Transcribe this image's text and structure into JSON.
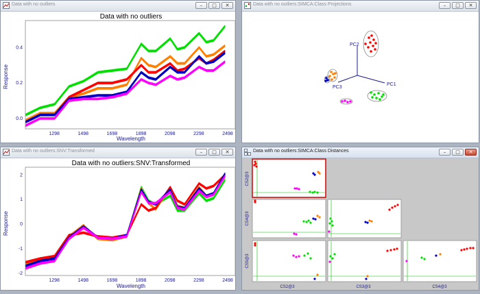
{
  "windows": {
    "raw": {
      "title": "Data with no outliers"
    },
    "proj": {
      "title": "Data with no outliers:SIMCA:Class Projections"
    },
    "snv": {
      "title": "Data with no outliers:SNV:Transformed"
    },
    "dist": {
      "title": "Data with no outliers:SIMCA:Class Distances"
    }
  },
  "window_buttons": {
    "minimize": "–",
    "maximize": "□",
    "close": "✕"
  },
  "colors": {
    "green": "#00e000",
    "orange": "#ff8000",
    "red": "#ff0000",
    "blue": "#0000c0",
    "magenta": "#ff00ff",
    "axis_label": "#1a1a8a",
    "frame": "#a0a0a0"
  },
  "projection": {
    "axes": [
      "PC1",
      "PC2",
      "PC3"
    ]
  },
  "distances": {
    "y_labels": [
      "CS2@3",
      "CS4@3",
      "CS5@3"
    ],
    "x_labels": [
      "CS2@3",
      "CS3@3",
      "CS4@3"
    ]
  },
  "chart_data": [
    {
      "type": "line",
      "title": "Data with no outliers",
      "xlabel": "Wavelength",
      "ylabel": "Response",
      "xlim": [
        1098,
        2550
      ],
      "ylim": [
        -0.06,
        0.55
      ],
      "xticks": [
        "1298",
        "1498",
        "1698",
        "1898",
        "2098",
        "2298",
        "2498"
      ],
      "yticks": [
        "0.0",
        "0.2",
        "0.4"
      ],
      "x": [
        1100,
        1200,
        1300,
        1400,
        1500,
        1600,
        1700,
        1800,
        1900,
        1950,
        2000,
        2100,
        2150,
        2200,
        2300,
        2350,
        2400,
        2480
      ],
      "series": [
        {
          "color": "green",
          "values": [
            0.02,
            0.06,
            0.08,
            0.18,
            0.21,
            0.26,
            0.27,
            0.28,
            0.42,
            0.38,
            0.38,
            0.45,
            0.39,
            0.4,
            0.48,
            0.43,
            0.44,
            0.52
          ]
        },
        {
          "color": "orange",
          "values": [
            -0.01,
            0.03,
            0.03,
            0.12,
            0.14,
            0.17,
            0.17,
            0.19,
            0.34,
            0.3,
            0.29,
            0.35,
            0.31,
            0.31,
            0.4,
            0.35,
            0.36,
            0.41
          ]
        },
        {
          "color": "red",
          "values": [
            -0.02,
            0.02,
            0.02,
            0.12,
            0.16,
            0.2,
            0.2,
            0.22,
            0.3,
            0.26,
            0.26,
            0.31,
            0.27,
            0.28,
            0.34,
            0.31,
            0.33,
            0.38
          ]
        },
        {
          "color": "blue",
          "values": [
            -0.02,
            0.02,
            0.02,
            0.11,
            0.12,
            0.13,
            0.13,
            0.15,
            0.26,
            0.23,
            0.22,
            0.29,
            0.26,
            0.26,
            0.35,
            0.31,
            0.32,
            0.37
          ]
        },
        {
          "color": "magenta",
          "values": [
            -0.04,
            0.0,
            0.0,
            0.1,
            0.11,
            0.11,
            0.12,
            0.14,
            0.22,
            0.2,
            0.19,
            0.24,
            0.22,
            0.23,
            0.29,
            0.27,
            0.27,
            0.32
          ]
        }
      ]
    },
    {
      "type": "line",
      "title": "Data with no outliers:SNV:Transformed",
      "xlabel": "Wavelength",
      "ylabel": "Response",
      "xlim": [
        1098,
        2550
      ],
      "ylim": [
        -2.1,
        2.3
      ],
      "xticks": [
        "1298",
        "1498",
        "1698",
        "1898",
        "2098",
        "2298",
        "2498"
      ],
      "yticks": [
        "-2",
        "-1",
        "0",
        "1",
        "2"
      ],
      "x": [
        1100,
        1200,
        1300,
        1400,
        1500,
        1600,
        1700,
        1800,
        1900,
        1950,
        2000,
        2100,
        2150,
        2200,
        2300,
        2350,
        2400,
        2480
      ],
      "series": [
        {
          "color": "green",
          "values": [
            -1.75,
            -1.55,
            -1.45,
            -0.6,
            -0.1,
            -0.6,
            -0.65,
            -0.5,
            1.5,
            0.95,
            0.8,
            1.15,
            0.55,
            0.55,
            1.25,
            0.95,
            1.05,
            1.8
          ]
        },
        {
          "color": "orange",
          "values": [
            -1.6,
            -1.4,
            -1.35,
            -0.5,
            -0.05,
            -0.6,
            -0.65,
            -0.5,
            1.45,
            0.85,
            0.6,
            1.5,
            0.75,
            0.65,
            1.5,
            1.15,
            1.25,
            1.95
          ]
        },
        {
          "color": "red",
          "values": [
            -1.55,
            -1.4,
            -1.3,
            -0.45,
            -0.35,
            -0.5,
            -0.55,
            -0.45,
            0.8,
            0.55,
            0.65,
            1.5,
            0.95,
            0.8,
            1.65,
            1.45,
            1.55,
            2.0
          ]
        },
        {
          "color": "blue",
          "values": [
            -1.7,
            -1.5,
            -1.4,
            -0.55,
            -0.1,
            -0.55,
            -0.6,
            -0.45,
            1.4,
            0.9,
            0.8,
            1.4,
            0.7,
            0.65,
            1.45,
            1.15,
            1.25,
            2.05
          ]
        },
        {
          "color": "magenta",
          "values": [
            -1.8,
            -1.6,
            -1.5,
            -0.6,
            -0.15,
            -0.55,
            -0.6,
            -0.5,
            1.3,
            0.85,
            0.85,
            1.3,
            0.65,
            0.6,
            1.35,
            1.1,
            1.2,
            1.95
          ]
        }
      ]
    }
  ]
}
